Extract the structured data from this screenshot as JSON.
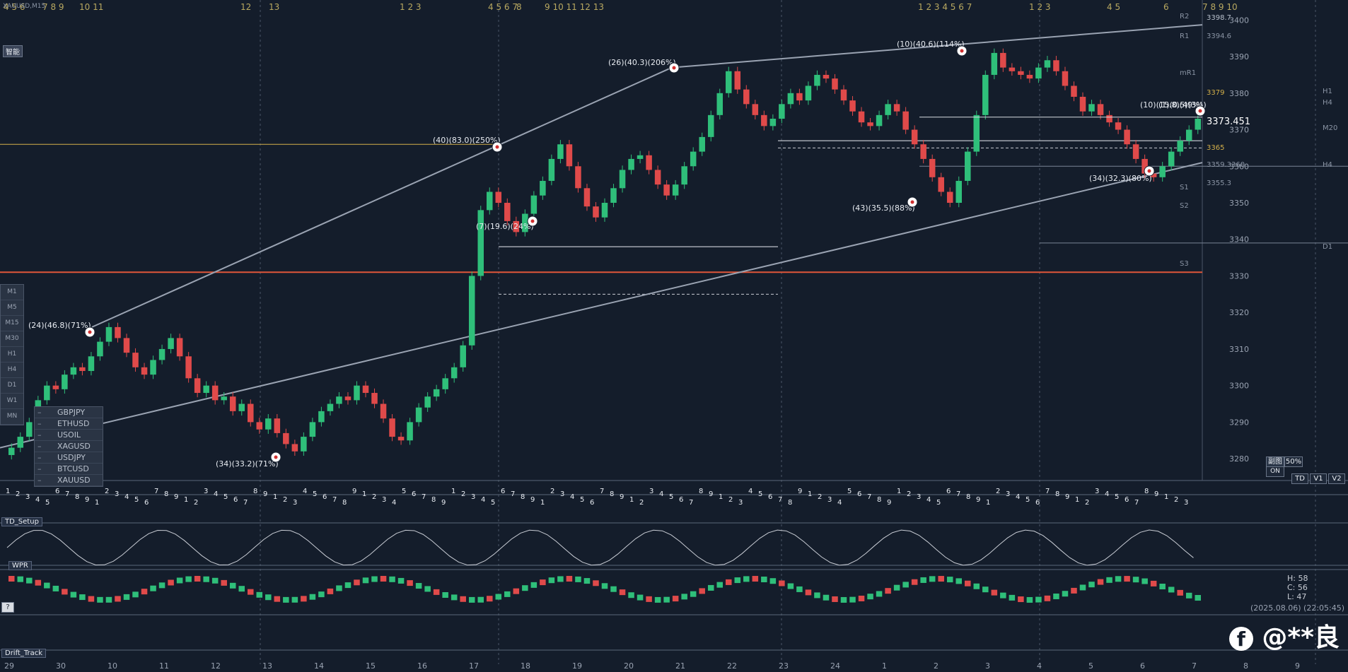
{
  "header": {
    "symbol_label": "XAUUSD,M15",
    "mode_badge": "智能"
  },
  "symbols_panel": [
    "GBPJPY",
    "ETHUSD",
    "USOIL",
    "XAGUSD",
    "USDJPY",
    "BTCUSD",
    "XAUUSD"
  ],
  "timeframes": [
    "M1",
    "M5",
    "M15",
    "M30",
    "H1",
    "H4",
    "D1",
    "W1",
    "MN"
  ],
  "level_labels": {
    "r2": "R2",
    "r1": "R1",
    "mr1": "mR1",
    "s1": "S1",
    "s2": "S2",
    "s3": "S3",
    "h1": "H1",
    "h4": "H4",
    "m20": "M20",
    "d1": "D1",
    "h1b": "H1",
    "h4b": "H4"
  },
  "price_labels": {
    "p3398": "3398.7",
    "p3394": "3394.6",
    "p3379": "3379",
    "p3373": "3373.451",
    "p3365": "3365",
    "p3359": "3359.3360",
    "p3355": "3355.3"
  },
  "chart_data": {
    "type": "candlestick",
    "title": "XAUUSD,M15",
    "ylim": [
      3275,
      3402
    ],
    "y_ticks": [
      3280,
      3290,
      3300,
      3310,
      3320,
      3330,
      3340,
      3350,
      3360,
      3370,
      3380,
      3390,
      3400
    ],
    "current_price": 3373.451,
    "levels": {
      "R2": 3398.7,
      "R1": 3394.6,
      "pivot_upper": 3379,
      "pivot": 3365,
      "S1_S2": 3359.3,
      "S3": 3331,
      "D1": 3339,
      "H4": 3360
    },
    "wave_labels": [
      {
        "text": "(24)(46.8)(71%)",
        "price": 3316
      },
      {
        "text": "(34)(33.2)(71%)",
        "price": 3282
      },
      {
        "text": "(40)(83.0)(250%)",
        "price": 3366
      },
      {
        "text": "(7)(19.6)(24%)",
        "price": 3346
      },
      {
        "text": "(26)(40.3)(206%)",
        "price": 3387
      },
      {
        "text": "(43)(35.5)(88%)",
        "price": 3350
      },
      {
        "text": "(10)(40.6)(114%)",
        "price": 3392
      },
      {
        "text": "(34)(32.3)(80%)",
        "price": 3357
      },
      {
        "text": "(10)(15.8)(49%)",
        "price": 3373
      },
      {
        "text": "(1)(0.5)(3%)",
        "price": 3373
      }
    ],
    "top_counts": [
      "4 5 6",
      "7 8 9",
      "10 11",
      "12",
      "13",
      "1 2 3",
      "4 5 6 7",
      "8",
      "9 10 11 12 13",
      "1 2 3 4 5 6 7",
      "1 2 3",
      "4 5",
      "6",
      "7 8 9 10"
    ],
    "candles_close": [
      3283,
      3286,
      3290,
      3296,
      3300,
      3299,
      3303,
      3305,
      3304,
      3308,
      3312,
      3316,
      3313,
      3309,
      3305,
      3303,
      3307,
      3310,
      3313,
      3308,
      3302,
      3298,
      3300,
      3296,
      3297,
      3293,
      3295,
      3290,
      3288,
      3291,
      3287,
      3284,
      3282,
      3286,
      3290,
      3293,
      3295,
      3297,
      3296,
      3300,
      3298,
      3295,
      3291,
      3286,
      3285,
      3290,
      3294,
      3297,
      3299,
      3302,
      3305,
      3311,
      3330,
      3348,
      3353,
      3350,
      3345,
      3342,
      3347,
      3352,
      3356,
      3362,
      3366,
      3360,
      3354,
      3349,
      3346,
      3350,
      3354,
      3359,
      3362,
      3363,
      3359,
      3355,
      3352,
      3355,
      3360,
      3364,
      3368,
      3374,
      3380,
      3386,
      3381,
      3377,
      3374,
      3371,
      3373,
      3377,
      3380,
      3378,
      3382,
      3385,
      3384,
      3381,
      3378,
      3375,
      3372,
      3371,
      3374,
      3377,
      3375,
      3370,
      3366,
      3362,
      3357,
      3353,
      3350,
      3356,
      3364,
      3374,
      3385,
      3391,
      3387,
      3386,
      3385,
      3384,
      3387,
      3389,
      3386,
      3382,
      3379,
      3375,
      3377,
      3374,
      3372,
      3370,
      3366,
      3362,
      3358,
      3357,
      3360,
      3364,
      3367,
      3370,
      3373
    ],
    "indicators": [
      {
        "name": "TD_Setup"
      },
      {
        "name": "WPR"
      },
      {
        "name": "Drift_Track",
        "H": 58,
        "C": 56,
        "L": 47,
        "timestamp": "(2025.08.06) (22:05:45)"
      }
    ],
    "x_tick_labels": [
      "29",
      "30",
      "10",
      "11",
      "12",
      "13",
      "14",
      "15",
      "16",
      "17",
      "18",
      "19",
      "20",
      "21",
      "22",
      "23",
      "24",
      "1",
      "2",
      "3",
      "4",
      "5",
      "6",
      "7",
      "8",
      "9"
    ]
  },
  "controls": {
    "td": "TD",
    "v1": "V1",
    "v2": "V2",
    "pct": "50%",
    "on": "ON",
    "help": "?",
    "sub": "副图"
  },
  "watermark": "@**良"
}
